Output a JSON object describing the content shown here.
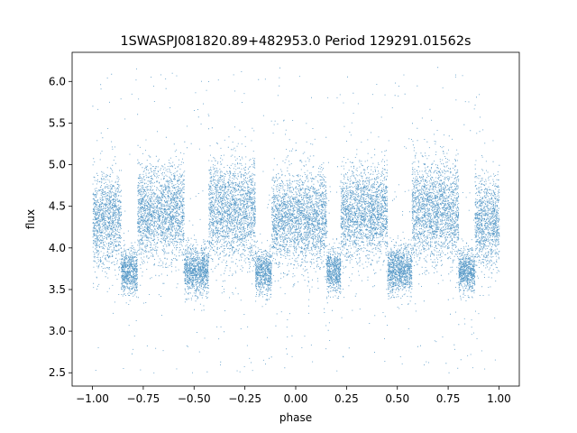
{
  "chart_data": {
    "type": "scatter",
    "title": "1SWASPJ081820.89+482953.0 Period 129291.01562s",
    "xlabel": "phase",
    "ylabel": "flux",
    "xlim": [
      -1.1,
      1.1
    ],
    "ylim": [
      2.34,
      6.35
    ],
    "x_ticks": [
      -1.0,
      -0.75,
      -0.5,
      -0.25,
      0.0,
      0.25,
      0.5,
      0.75,
      1.0
    ],
    "x_tick_labels": [
      "−1.00",
      "−0.75",
      "−0.50",
      "−0.25",
      "0.00",
      "0.25",
      "0.50",
      "0.75",
      "1.00"
    ],
    "y_ticks": [
      2.5,
      3.0,
      3.5,
      4.0,
      4.5,
      5.0,
      5.5,
      6.0
    ],
    "y_tick_labels": [
      "2.5",
      "3.0",
      "3.5",
      "4.0",
      "4.5",
      "5.0",
      "5.5",
      "6.0"
    ],
    "grid": false,
    "legend": "none",
    "point_color": "#1f77b4",
    "phase_range": [
      -1.0,
      1.0
    ],
    "light_curve_segments": [
      {
        "phase_start": -1.0,
        "phase_end": -0.86,
        "flux_center": 4.35,
        "flux_spread": 0.28
      },
      {
        "phase_start": -0.86,
        "phase_end": -0.78,
        "flux_center": 3.72,
        "flux_spread": 0.13
      },
      {
        "phase_start": -0.78,
        "phase_end": -0.55,
        "flux_center": 4.42,
        "flux_spread": 0.28
      },
      {
        "phase_start": -0.55,
        "phase_end": -0.43,
        "flux_center": 3.74,
        "flux_spread": 0.14
      },
      {
        "phase_start": -0.43,
        "phase_end": -0.2,
        "flux_center": 4.45,
        "flux_spread": 0.3
      },
      {
        "phase_start": -0.2,
        "phase_end": -0.12,
        "flux_center": 3.72,
        "flux_spread": 0.13
      },
      {
        "phase_start": -0.12,
        "phase_end": 0.15,
        "flux_center": 4.35,
        "flux_spread": 0.28
      },
      {
        "phase_start": 0.15,
        "phase_end": 0.22,
        "flux_center": 3.72,
        "flux_spread": 0.13
      },
      {
        "phase_start": 0.22,
        "phase_end": 0.45,
        "flux_center": 4.42,
        "flux_spread": 0.28
      },
      {
        "phase_start": 0.45,
        "phase_end": 0.57,
        "flux_center": 3.74,
        "flux_spread": 0.14
      },
      {
        "phase_start": 0.57,
        "phase_end": 0.8,
        "flux_center": 4.45,
        "flux_spread": 0.3
      },
      {
        "phase_start": 0.8,
        "phase_end": 0.88,
        "flux_center": 3.72,
        "flux_spread": 0.13
      },
      {
        "phase_start": 0.88,
        "phase_end": 1.0,
        "flux_center": 4.3,
        "flux_spread": 0.28
      }
    ],
    "outlier_flux_range": [
      2.5,
      6.2
    ]
  }
}
